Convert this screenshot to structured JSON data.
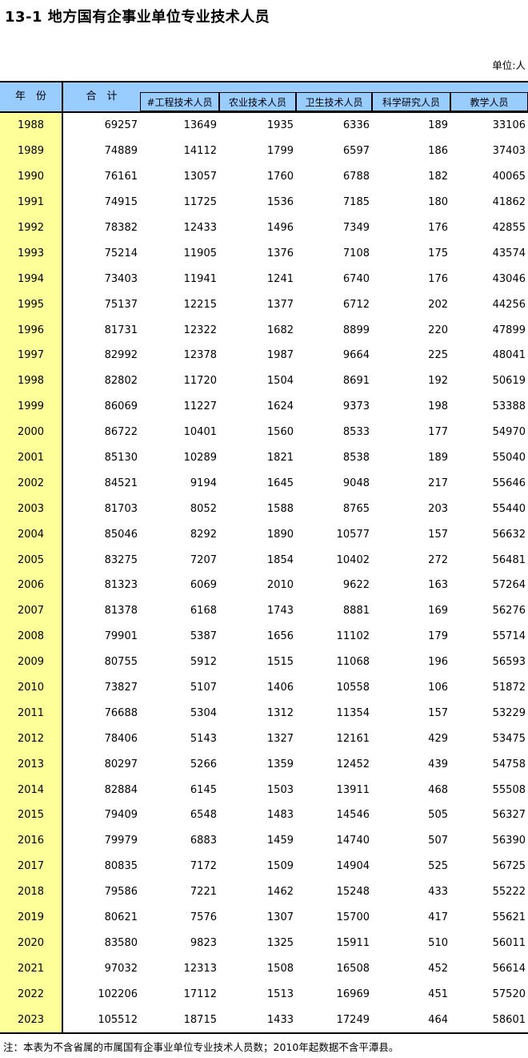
{
  "page": {
    "title": "13-1 地方国有企事业单位专业技术人员",
    "unit_label": "单位:人",
    "footnote": "注：本表为不含省属的市属国有企事业单位专业技术人员数；2010年起数据不含平潭县。"
  },
  "colors": {
    "header_bg": "#99CCFF",
    "year_column_bg": "#FFFF99",
    "border": "#000000",
    "text": "#000000"
  },
  "table": {
    "header": {
      "year_label": "年　份",
      "total_label": "合　计",
      "sub_labels": [
        "#工程技术人员",
        "农业技术人员",
        "卫生技术人员",
        "科学研究人员",
        "教学人员"
      ]
    }
  },
  "chart_data": {
    "type": "table",
    "title": "13-1 地方国有企事业单位专业技术人员",
    "unit": "人",
    "columns": [
      "年份",
      "合计",
      "#工程技术人员",
      "农业技术人员",
      "卫生技术人员",
      "科学研究人员",
      "教学人员"
    ],
    "rows": [
      [
        1988,
        69257,
        13649,
        1935,
        6336,
        189,
        33106
      ],
      [
        1989,
        74889,
        14112,
        1799,
        6597,
        186,
        37403
      ],
      [
        1990,
        76161,
        13057,
        1760,
        6788,
        182,
        40065
      ],
      [
        1991,
        74915,
        11725,
        1536,
        7185,
        180,
        41862
      ],
      [
        1992,
        78382,
        12433,
        1496,
        7349,
        176,
        42855
      ],
      [
        1993,
        75214,
        11905,
        1376,
        7108,
        175,
        43574
      ],
      [
        1994,
        73403,
        11941,
        1241,
        6740,
        176,
        43046
      ],
      [
        1995,
        75137,
        12215,
        1377,
        6712,
        202,
        44256
      ],
      [
        1996,
        81731,
        12322,
        1682,
        8899,
        220,
        47899
      ],
      [
        1997,
        82992,
        12378,
        1987,
        9664,
        225,
        48041
      ],
      [
        1998,
        82802,
        11720,
        1504,
        8691,
        192,
        50619
      ],
      [
        1999,
        86069,
        11227,
        1624,
        9373,
        198,
        53388
      ],
      [
        2000,
        86722,
        10401,
        1560,
        8533,
        177,
        54970
      ],
      [
        2001,
        85130,
        10289,
        1821,
        8538,
        189,
        55040
      ],
      [
        2002,
        84521,
        9194,
        1645,
        9048,
        217,
        55646
      ],
      [
        2003,
        81703,
        8052,
        1588,
        8765,
        203,
        55440
      ],
      [
        2004,
        85046,
        8292,
        1890,
        10577,
        157,
        56632
      ],
      [
        2005,
        83275,
        7207,
        1854,
        10402,
        272,
        56481
      ],
      [
        2006,
        81323,
        6069,
        2010,
        9622,
        163,
        57264
      ],
      [
        2007,
        81378,
        6168,
        1743,
        8881,
        169,
        56276
      ],
      [
        2008,
        79901,
        5387,
        1656,
        11102,
        179,
        55714
      ],
      [
        2009,
        80755,
        5912,
        1515,
        11068,
        196,
        56593
      ],
      [
        2010,
        73827,
        5107,
        1406,
        10558,
        106,
        51872
      ],
      [
        2011,
        76688,
        5304,
        1312,
        11354,
        157,
        53229
      ],
      [
        2012,
        78406,
        5143,
        1327,
        12161,
        429,
        53475
      ],
      [
        2013,
        80297,
        5266,
        1359,
        12452,
        439,
        54758
      ],
      [
        2014,
        82884,
        6145,
        1503,
        13911,
        468,
        55508
      ],
      [
        2015,
        79409,
        6548,
        1483,
        14546,
        505,
        56327
      ],
      [
        2016,
        79979,
        6883,
        1459,
        14740,
        507,
        56390
      ],
      [
        2017,
        80835,
        7172,
        1509,
        14904,
        525,
        56725
      ],
      [
        2018,
        79586,
        7221,
        1462,
        15248,
        433,
        55222
      ],
      [
        2019,
        80621,
        7576,
        1307,
        15700,
        417,
        55621
      ],
      [
        2020,
        83580,
        9823,
        1325,
        15911,
        510,
        56011
      ],
      [
        2021,
        97032,
        12313,
        1508,
        16508,
        452,
        56614
      ],
      [
        2022,
        102206,
        17112,
        1513,
        16969,
        451,
        57520
      ],
      [
        2023,
        105512,
        18715,
        1433,
        17249,
        464,
        58601
      ]
    ]
  }
}
